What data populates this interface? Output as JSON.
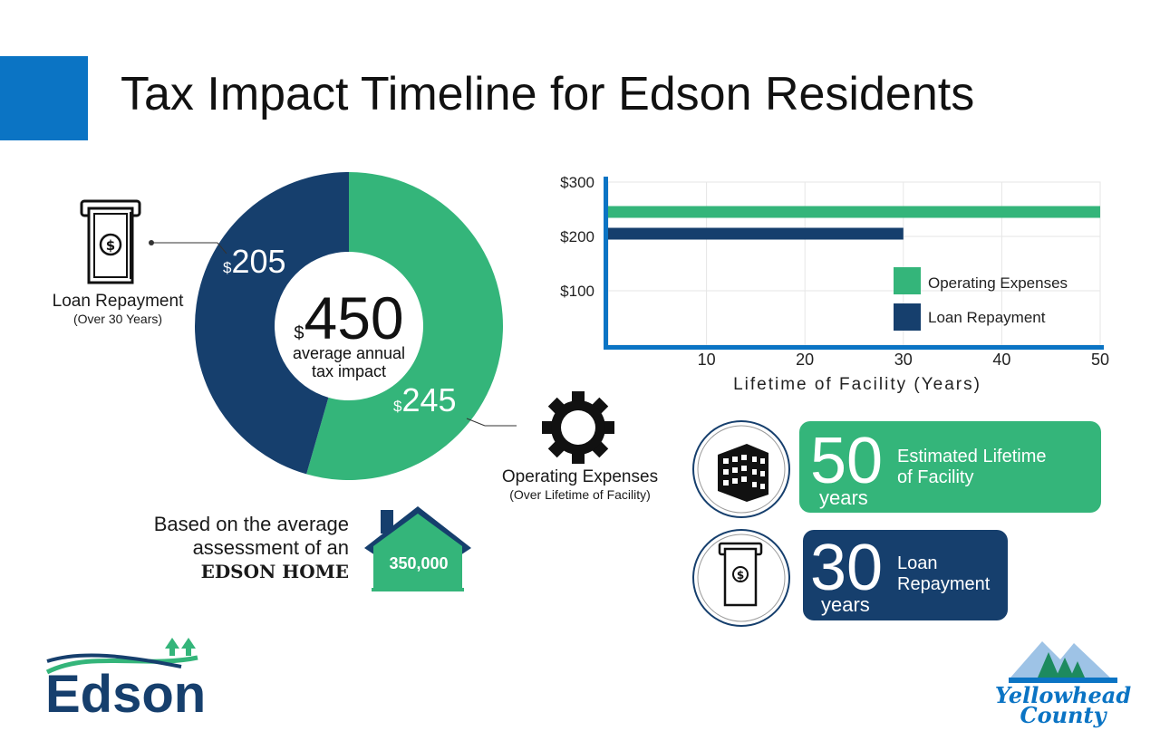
{
  "title": "Tax Impact Timeline for Edson Residents",
  "colors": {
    "green": "#34b57a",
    "navy": "#163f6d",
    "blue": "#0b74c4"
  },
  "donut": {
    "center_currency": "$",
    "center_value": "450",
    "center_caption_line1": "average annual",
    "center_caption_line2": "tax impact",
    "loan_currency": "$",
    "loan_value": "205",
    "operating_currency": "$",
    "operating_value": "245"
  },
  "loan_label": {
    "title": "Loan Repayment",
    "sub": "(Over 30 Years)"
  },
  "operating_label": {
    "title": "Operating Expenses",
    "sub": "(Over Lifetime of Facility)"
  },
  "home": {
    "line1": "Based on the average",
    "line2": "assessment of an",
    "line3": "EDSON HOME",
    "value": "350,000"
  },
  "stats": [
    {
      "number": "50",
      "unit": "years",
      "desc_line1": "Estimated Lifetime",
      "desc_line2": "of Facility"
    },
    {
      "number": "30",
      "unit": "years",
      "desc_line1": "Loan",
      "desc_line2": "Repayment"
    }
  ],
  "logos": {
    "edson": "Edson",
    "county_line1": "Yellowhead",
    "county_line2": "County"
  },
  "chart_data": [
    {
      "type": "pie",
      "variant": "donut",
      "slices": [
        {
          "label": "Operating Expenses",
          "value": 245,
          "color": "#34b57a"
        },
        {
          "label": "Loan Repayment",
          "value": 205,
          "color": "#163f6d"
        }
      ],
      "total": 450
    },
    {
      "type": "bar",
      "orientation": "horizontal",
      "title": "",
      "xlabel": "Lifetime of Facility (Years)",
      "ylabel": "",
      "xlim": [
        0,
        50
      ],
      "ylim": [
        0,
        300
      ],
      "x_ticks": [
        "10",
        "20",
        "30",
        "40",
        "50"
      ],
      "y_ticks": [
        "$100",
        "$200",
        "$300"
      ],
      "y_tick_values": [
        100,
        200,
        300
      ],
      "grid": true,
      "legend_position": "bottom-right",
      "series": [
        {
          "name": "Operating Expenses",
          "color": "#34b57a",
          "amount": 245,
          "years": 50
        },
        {
          "name": "Loan Repayment",
          "color": "#163f6d",
          "amount": 205,
          "years": 30
        }
      ]
    }
  ]
}
